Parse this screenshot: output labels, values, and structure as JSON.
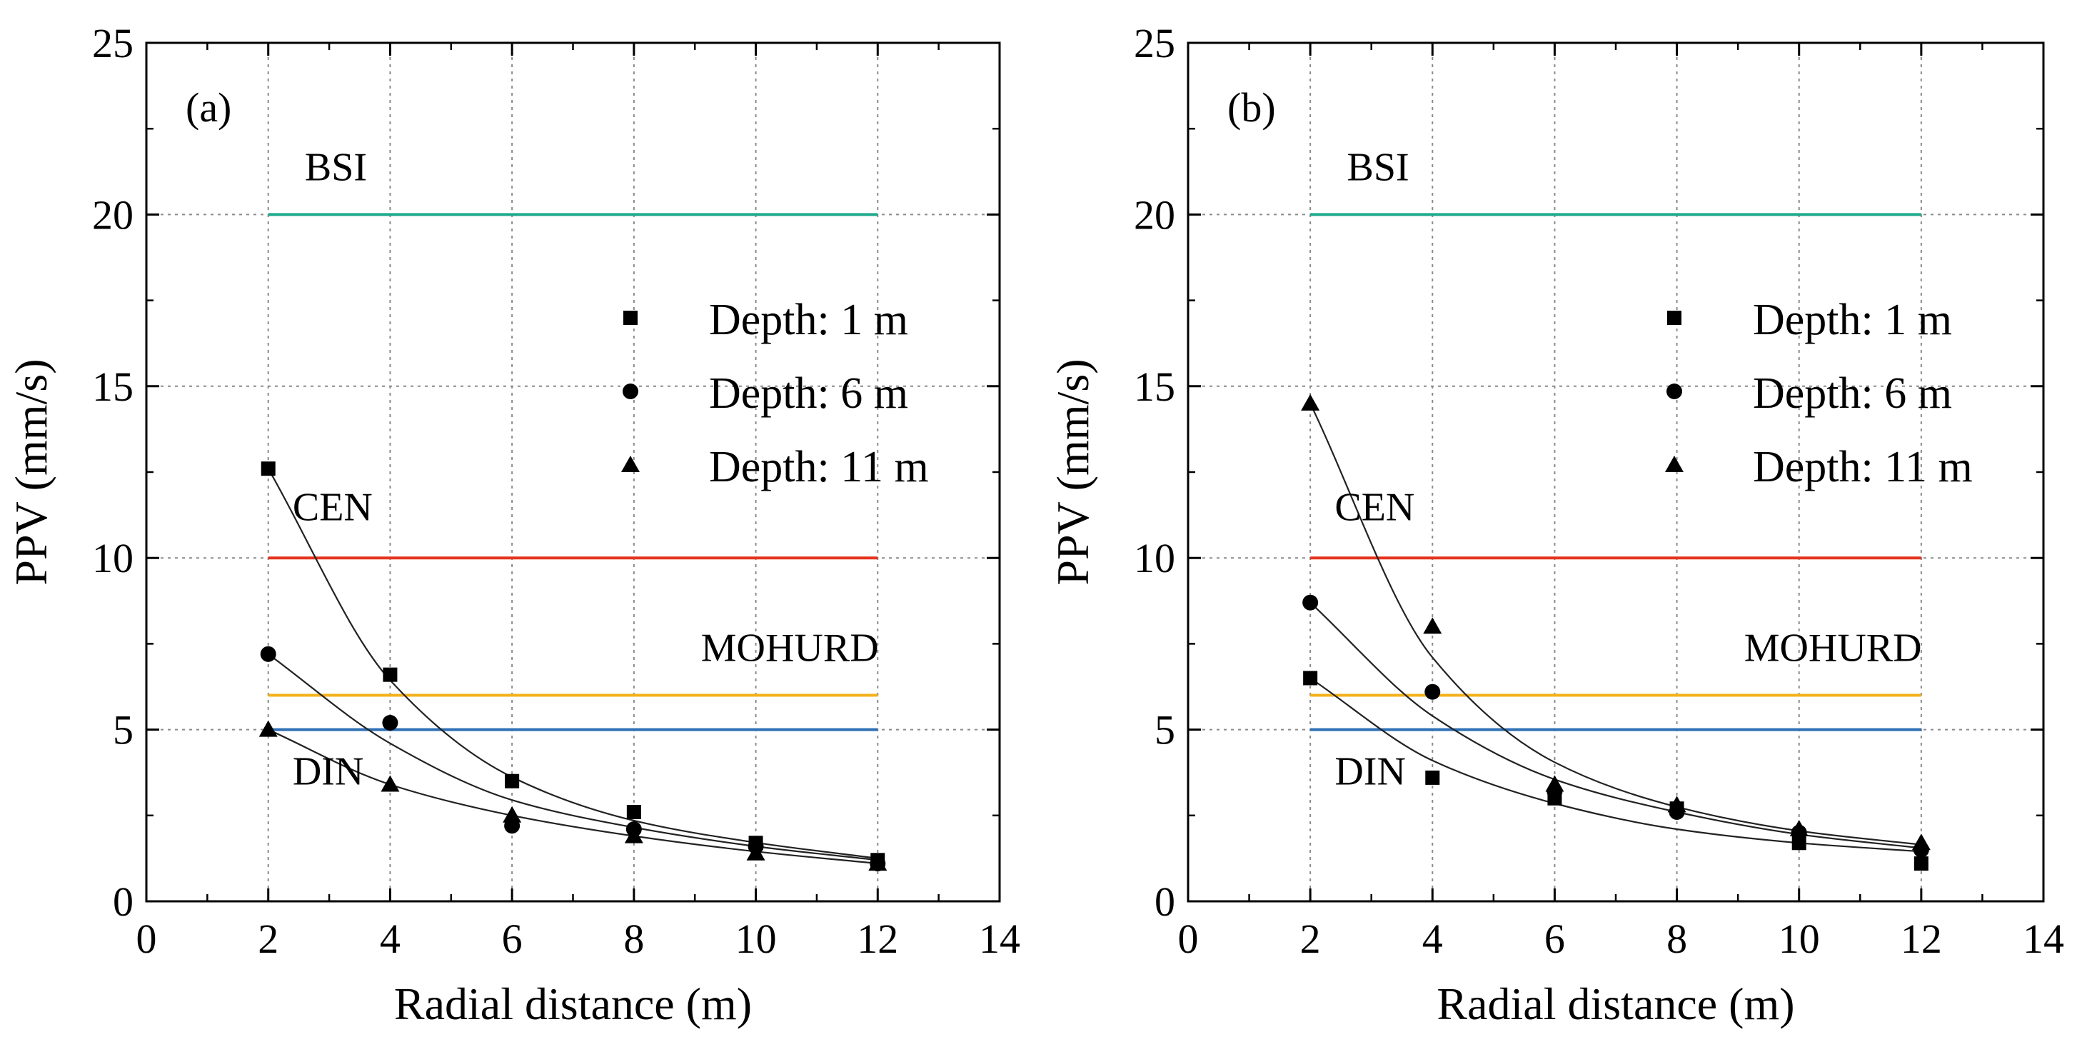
{
  "chart_data": [
    {
      "type": "scatter",
      "panel_label": "(a)",
      "xlabel": "Radial distance (m)",
      "ylabel": "PPV (mm/s)",
      "xlim": [
        0,
        14
      ],
      "ylim": [
        0,
        25
      ],
      "xticks": [
        0,
        2,
        4,
        6,
        8,
        10,
        12,
        14
      ],
      "yticks": [
        0,
        5,
        10,
        15,
        20,
        25
      ],
      "grid": true,
      "legend_position": "upper-right",
      "series": [
        {
          "name": "Depth: 1 m",
          "marker": "square",
          "x": [
            2,
            4,
            6,
            8,
            10,
            12
          ],
          "y": [
            12.6,
            6.6,
            3.5,
            2.6,
            1.7,
            1.2
          ],
          "fit": [
            12.6,
            6.44,
            3.62,
            2.35,
            1.71,
            1.25
          ]
        },
        {
          "name": "Depth: 6 m",
          "marker": "circle",
          "x": [
            2,
            4,
            6,
            8,
            10,
            12
          ],
          "y": [
            7.2,
            5.2,
            2.2,
            2.1,
            1.6,
            1.1
          ],
          "fit": [
            7.2,
            4.6,
            2.95,
            2.15,
            1.6,
            1.2
          ]
        },
        {
          "name": "Depth: 11 m",
          "marker": "triangle",
          "x": [
            2,
            4,
            6,
            8,
            10,
            12
          ],
          "y": [
            5.0,
            3.4,
            2.5,
            1.9,
            1.4,
            1.1
          ],
          "fit": [
            5.0,
            3.4,
            2.5,
            1.9,
            1.45,
            1.1
          ]
        }
      ],
      "standards": [
        {
          "name": "BSI",
          "y": 20,
          "color": "#1fa98c",
          "x_range": [
            2,
            12
          ],
          "label_x": 2.6,
          "label_y": 21.0
        },
        {
          "name": "CEN",
          "y": 10,
          "color": "#e5341f",
          "x_range": [
            2,
            12
          ],
          "label_x": 2.4,
          "label_y": 11.1
        },
        {
          "name": "MOHURD",
          "y": 6,
          "color": "#f2b21a",
          "x_range": [
            2,
            12
          ],
          "label_x": 9.1,
          "label_y": 7.0
        },
        {
          "name": "DIN",
          "y": 5,
          "color": "#2e6fb5",
          "x_range": [
            2,
            12
          ],
          "label_x": 2.4,
          "label_y": 3.4
        }
      ]
    },
    {
      "type": "scatter",
      "panel_label": "(b)",
      "xlabel": "Radial distance (m)",
      "ylabel": "PPV (mm/s)",
      "xlim": [
        0,
        14
      ],
      "ylim": [
        0,
        25
      ],
      "xticks": [
        0,
        2,
        4,
        6,
        8,
        10,
        12,
        14
      ],
      "yticks": [
        0,
        5,
        10,
        15,
        20,
        25
      ],
      "grid": true,
      "legend_position": "upper-right",
      "series": [
        {
          "name": "Depth: 1 m",
          "marker": "square",
          "x": [
            2,
            4,
            6,
            8,
            10,
            12
          ],
          "y": [
            6.5,
            3.6,
            3.0,
            2.7,
            1.7,
            1.1
          ],
          "fit": [
            6.5,
            4.1,
            2.85,
            2.1,
            1.7,
            1.45
          ]
        },
        {
          "name": "Depth: 6 m",
          "marker": "circle",
          "x": [
            2,
            4,
            6,
            8,
            10,
            12
          ],
          "y": [
            8.7,
            6.1,
            3.2,
            2.6,
            2.0,
            1.5
          ],
          "fit": [
            8.7,
            5.4,
            3.55,
            2.6,
            1.95,
            1.55
          ]
        },
        {
          "name": "Depth: 11 m",
          "marker": "triangle",
          "x": [
            2,
            4,
            6,
            8,
            10,
            12
          ],
          "y": [
            14.5,
            8.0,
            3.4,
            2.8,
            2.1,
            1.7
          ],
          "fit": [
            14.5,
            7.1,
            4.05,
            2.75,
            2.05,
            1.65
          ]
        }
      ],
      "standards": [
        {
          "name": "BSI",
          "y": 20,
          "color": "#1fa98c",
          "x_range": [
            2,
            12
          ],
          "label_x": 2.6,
          "label_y": 21.0
        },
        {
          "name": "CEN",
          "y": 10,
          "color": "#e5341f",
          "x_range": [
            2,
            12
          ],
          "label_x": 2.4,
          "label_y": 11.1
        },
        {
          "name": "MOHURD",
          "y": 6,
          "color": "#f2b21a",
          "x_range": [
            2,
            12
          ],
          "label_x": 9.1,
          "label_y": 7.0
        },
        {
          "name": "DIN",
          "y": 5,
          "color": "#2e6fb5",
          "x_range": [
            2,
            12
          ],
          "label_x": 2.4,
          "label_y": 3.4
        }
      ]
    }
  ]
}
